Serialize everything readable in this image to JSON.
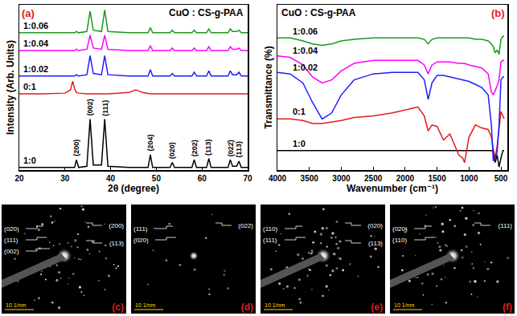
{
  "chart_data": [
    {
      "type": "line",
      "panel": "(a)",
      "title": "CuO : CS-g-PAA",
      "x_label": "2θ (degree)",
      "y_label": "Intensity (Arb. Units)",
      "x": [
        20,
        25,
        30,
        31.2,
        31.7,
        32.1,
        32.5,
        33,
        34.8,
        35.5,
        36.2,
        38,
        38.7,
        39.4,
        44,
        45.5,
        47,
        48.2,
        48.7,
        49.2,
        53,
        53.5,
        54,
        57.8,
        58.3,
        58.8,
        61,
        61.5,
        62,
        65.7,
        66.2,
        66.7,
        67.6,
        68.1,
        68.6,
        70
      ],
      "series": [
        {
          "name": "1:0",
          "color": "#000000",
          "values": [
            2,
            2,
            2,
            2,
            2,
            2,
            8,
            2,
            3,
            40,
            4,
            4,
            40,
            3,
            2,
            2,
            2,
            2,
            12,
            2,
            2,
            6,
            2,
            2,
            8,
            2,
            2,
            9,
            2,
            2,
            8,
            3,
            3,
            7,
            2,
            2
          ]
        },
        {
          "name": "0:1",
          "color": "#e41a1c",
          "values": [
            60,
            60,
            60.5,
            63,
            70,
            64,
            61,
            60.5,
            60,
            60,
            60,
            60,
            60,
            60,
            61,
            63,
            61,
            60,
            60,
            60,
            60,
            60,
            60,
            60,
            60,
            60,
            60,
            60,
            60,
            60,
            60,
            60,
            60,
            60,
            60,
            60
          ]
        },
        {
          "name": "1:0.02",
          "color": "#1f1fff",
          "values": [
            74,
            74,
            74,
            74,
            74,
            74,
            75,
            74,
            75,
            90,
            76,
            75,
            90,
            75,
            74,
            74,
            74,
            74,
            79,
            74,
            74,
            76,
            74,
            74,
            77,
            74,
            74,
            78,
            74,
            74,
            78,
            75,
            75,
            77,
            74,
            74
          ]
        },
        {
          "name": "1:0.04",
          "color": "#ff00ff",
          "values": [
            94,
            94,
            94,
            94,
            94,
            94,
            95,
            94,
            95,
            106,
            96,
            95,
            106,
            95,
            94,
            94,
            94,
            94,
            98,
            94,
            94,
            96,
            94,
            94,
            96,
            94,
            94,
            97,
            94,
            94,
            97,
            95,
            95,
            96,
            94,
            94
          ]
        },
        {
          "name": "1:0.06",
          "color": "#1a9a1a",
          "values": [
            108,
            108,
            108,
            108,
            108,
            108,
            109,
            108,
            109,
            125,
            110,
            109,
            126,
            109,
            108,
            108,
            108,
            108,
            112,
            108,
            108,
            110,
            108,
            108,
            110,
            108,
            108,
            111,
            108,
            108,
            111,
            109,
            109,
            110,
            108,
            108
          ]
        }
      ],
      "annotations": [
        {
          "text": "(200)",
          "x": 32.5
        },
        {
          "text": "(002)",
          "x": 35.5
        },
        {
          "text": "(111)",
          "x": 38.7
        },
        {
          "text": "(204)",
          "x": 48.7
        },
        {
          "text": "(020)",
          "x": 53.5
        },
        {
          "text": "(202)",
          "x": 58.3
        },
        {
          "text": "(113)",
          "x": 61.5
        },
        {
          "text": "(022̄)",
          "x": 66.2
        },
        {
          "text": "(113)",
          "x": 68.1
        }
      ],
      "xlim": [
        20,
        70
      ],
      "xticks": [
        20,
        30,
        40,
        50,
        60,
        70
      ],
      "ylim": [
        0,
        130
      ],
      "grid": false,
      "tick_labels": "x"
    },
    {
      "type": "line",
      "panel": "(b)",
      "title": "CuO : CS-g-PAA",
      "x_label": "Wavenumber (cm⁻¹)",
      "y_label": "Transmittance (%)",
      "x": [
        4000,
        3800,
        3600,
        3450,
        3300,
        3150,
        3000,
        2800,
        2500,
        2200,
        2000,
        1800,
        1700,
        1640,
        1580,
        1500,
        1400,
        1300,
        1160,
        1100,
        1070,
        1000,
        900,
        800,
        700,
        650,
        620,
        590,
        560,
        530,
        500,
        470,
        450
      ],
      "series": [
        {
          "name": "1:0",
          "color": "#000000",
          "values": [
            13,
            13,
            13,
            13,
            13,
            13,
            13,
            13,
            13,
            13,
            13,
            13,
            13,
            13,
            13,
            13,
            13,
            13,
            13,
            13,
            13,
            13,
            13,
            13,
            13,
            13,
            12,
            5,
            10,
            2,
            8,
            13,
            13
          ]
        },
        {
          "name": "0:1",
          "color": "#e41a1c",
          "values": [
            34,
            34,
            33,
            31,
            31,
            32,
            33,
            35,
            36,
            38,
            40,
            42,
            36,
            26,
            30,
            29,
            20,
            24,
            10,
            8,
            5,
            22,
            30,
            28,
            27,
            22,
            14,
            8,
            16,
            28,
            39,
            36,
            34
          ]
        },
        {
          "name": "1:0.02",
          "color": "#1f1fff",
          "values": [
            65,
            64,
            58,
            45,
            34,
            38,
            50,
            60,
            64,
            65,
            65,
            65,
            60,
            47,
            58,
            63,
            63,
            62,
            61,
            60,
            60,
            59,
            57,
            55,
            50,
            30,
            6,
            8,
            12,
            30,
            60,
            62,
            62
          ]
        },
        {
          "name": "1:0.04",
          "color": "#ff00ff",
          "values": [
            76,
            75,
            70,
            62,
            58,
            60,
            66,
            71,
            73,
            73,
            73,
            73,
            70,
            64,
            70,
            72,
            72,
            72,
            71,
            71,
            71,
            70,
            69,
            68,
            64,
            52,
            50,
            53,
            56,
            60,
            72,
            73,
            73
          ]
        },
        {
          "name": "1:0.06",
          "color": "#1a9a1a",
          "values": [
            88,
            88,
            86,
            84,
            83,
            84,
            86,
            87,
            88,
            88,
            88,
            88,
            87,
            84,
            87,
            88,
            88,
            88,
            88,
            88,
            88,
            88,
            87,
            87,
            86,
            84,
            82,
            78,
            80,
            77,
            87,
            89,
            89
          ]
        }
      ],
      "xlim": [
        4000,
        400
      ],
      "xticks": [
        4000,
        3500,
        3000,
        2500,
        2000,
        1500,
        1000,
        500
      ],
      "ylim": [
        0,
        110
      ],
      "grid": false,
      "tick_labels": "x"
    }
  ],
  "saed_panels": [
    {
      "panel": "(c)",
      "scale_bar": "10 1/nm",
      "labels_left": [
        "(020)",
        "(111)",
        "(002)"
      ],
      "labels_right": [
        "(200)",
        "(113)"
      ]
    },
    {
      "panel": "(d)",
      "scale_bar": "10 1/nm",
      "labels_left": [
        "(111)",
        "(020)"
      ],
      "labels_right": [
        "(022)"
      ]
    },
    {
      "panel": "(e)",
      "scale_bar": "10 1/nm",
      "labels_left": [
        "(110)",
        "(111)"
      ],
      "labels_right": [
        "(020)",
        "(113)"
      ]
    },
    {
      "panel": "(f)",
      "scale_bar": "10 1/nm",
      "labels_left": [
        "(020)",
        "(110)"
      ],
      "labels_right": [
        "(111)"
      ]
    }
  ]
}
